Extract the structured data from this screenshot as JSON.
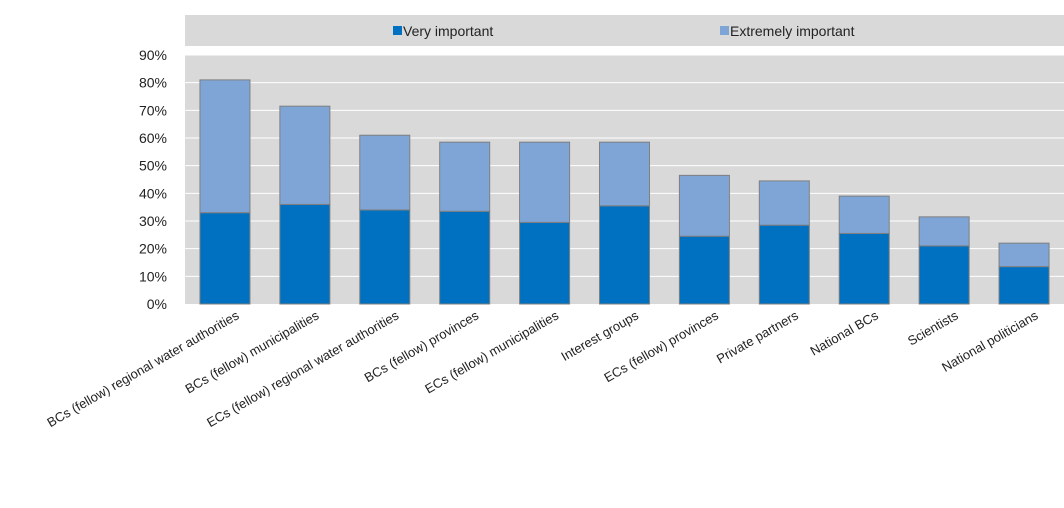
{
  "chart_data": {
    "type": "bar",
    "stacked": true,
    "categories": [
      "BCs (fellow) regional water authorities",
      "BCs (fellow) municipalities",
      "ECs (fellow) regional water authorities",
      "BCs (fellow) provinces",
      "ECs (fellow) municipalities",
      "Interest groups",
      "ECs (fellow) provinces",
      "Private partners",
      "National BCs",
      "Scientists",
      "National politicians"
    ],
    "series": [
      {
        "name": "Very important",
        "color": "#0070c0",
        "values": [
          33,
          36,
          34,
          33.5,
          29.5,
          35.5,
          24.5,
          28.5,
          25.5,
          21,
          13.5
        ]
      },
      {
        "name": "Extremely important",
        "color": "#7fa5d6",
        "values": [
          48,
          35.5,
          27,
          25,
          29,
          23,
          22,
          16,
          13.5,
          10.5,
          8.5
        ]
      }
    ],
    "ylim": [
      0,
      90
    ],
    "yticks": [
      "0%",
      "10%",
      "20%",
      "30%",
      "40%",
      "50%",
      "60%",
      "70%",
      "80%",
      "90%"
    ],
    "grid": true,
    "legend_position": "top",
    "xlabel": "",
    "ylabel": ""
  }
}
